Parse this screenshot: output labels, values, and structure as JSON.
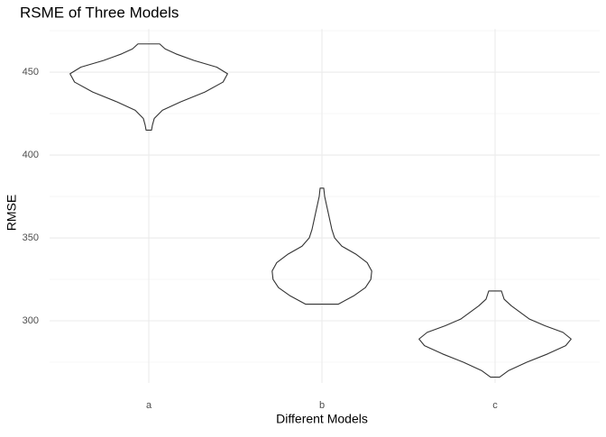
{
  "chart_data": {
    "type": "violin",
    "title": "RSME of Three Models",
    "x_label": "Different Models",
    "y_label": "RMSE",
    "categories": [
      "a",
      "b",
      "c"
    ],
    "violins": [
      {
        "y": [
          415,
          418,
          422,
          427,
          432,
          438,
          444,
          449,
          453,
          457,
          461,
          464,
          467
        ],
        "density": [
          3,
          4,
          6,
          15,
          35,
          62,
          82,
          87,
          75,
          50,
          30,
          18,
          12
        ]
      },
      {
        "y": [
          310,
          315,
          320,
          325,
          330,
          335,
          340,
          345,
          350,
          355,
          360,
          365,
          370,
          375,
          380
        ],
        "density": [
          18,
          35,
          48,
          54,
          55,
          50,
          38,
          22,
          14,
          11,
          9,
          7,
          5,
          3,
          2
        ]
      },
      {
        "y": [
          266,
          270,
          275,
          280,
          285,
          289,
          293,
          297,
          301,
          305,
          309,
          313,
          318
        ],
        "density": [
          5,
          15,
          35,
          58,
          78,
          84,
          75,
          55,
          38,
          28,
          18,
          10,
          7
        ]
      }
    ],
    "color": "#333333",
    "ylim": [
      262.5,
      476
    ],
    "yticks": [
      300,
      350,
      400,
      450
    ],
    "minor_yticks": [
      275,
      325,
      375,
      425,
      475
    ],
    "grid": true
  }
}
